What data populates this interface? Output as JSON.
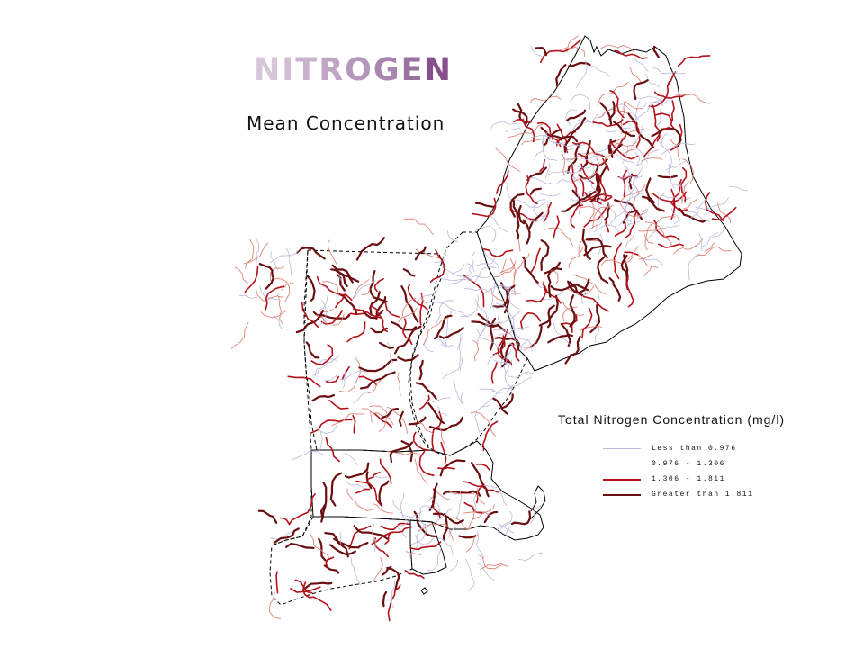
{
  "title": {
    "text": "NITROGEN",
    "letter_colors": [
      "#d6c6d8",
      "#d0bed3",
      "#c8b2cc",
      "#c0a6c4",
      "#b597bb",
      "#a986b0",
      "#9a72a2",
      "#874f8c"
    ]
  },
  "subtitle": "Mean Concentration",
  "legend": {
    "title": "Total Nitrogen Concentration (mg/l)",
    "items": [
      {
        "label": "Less than 0.976",
        "color": "#b9b9dc",
        "class": "low"
      },
      {
        "label": "0.976 - 1.306",
        "color": "#e0857a",
        "class": "mid-low"
      },
      {
        "label": "1.306 - 1.811",
        "color": "#b3121a",
        "class": "mid-high"
      },
      {
        "label": "Greater than 1.811",
        "color": "#6a0e10",
        "class": "high"
      }
    ]
  },
  "map": {
    "region": "New England",
    "states": [
      "Maine",
      "New Hampshire",
      "Vermont",
      "Massachusetts",
      "Connecticut",
      "Rhode Island"
    ],
    "outline_color": "#000000"
  }
}
